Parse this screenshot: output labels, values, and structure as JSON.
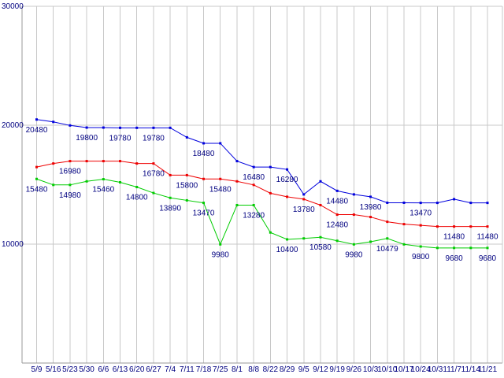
{
  "chart_data": {
    "type": "line",
    "title": "",
    "legend": "none",
    "grid": true,
    "x": [
      "5/9",
      "5/16",
      "5/23",
      "5/30",
      "6/6",
      "6/13",
      "6/20",
      "6/27",
      "7/4",
      "7/11",
      "7/18",
      "7/25",
      "8/1",
      "8/8",
      "8/22",
      "8/29",
      "9/5",
      "9/12",
      "9/19",
      "9/26",
      "10/3",
      "10/10",
      "10/17",
      "10/24",
      "10/31",
      "11/7",
      "11/14",
      "11/21"
    ],
    "y_axis": {
      "min": 0,
      "max": 30000,
      "ticks": [
        10000,
        20000,
        30000
      ],
      "tick_labels": [
        "10000",
        "20000",
        "30000"
      ]
    },
    "colors": {
      "grid": "#c8c8c8",
      "axis": "#999999",
      "text": "#000080",
      "background": "#ffffff"
    },
    "series": [
      {
        "name": "blue",
        "color": "#0000dd",
        "values": [
          20480,
          20280,
          19980,
          19800,
          19800,
          19780,
          19780,
          19780,
          19780,
          18980,
          18480,
          18480,
          16980,
          16480,
          16480,
          16280,
          14180,
          15280,
          14480,
          14180,
          13980,
          13480,
          13480,
          13470,
          13470,
          13780,
          13470,
          13470
        ],
        "point_labels": [
          {
            "i": 0,
            "text": "20480"
          },
          {
            "i": 3,
            "text": "19800"
          },
          {
            "i": 5,
            "text": "19780"
          },
          {
            "i": 7,
            "text": "19780"
          },
          {
            "i": 10,
            "text": "18480"
          },
          {
            "i": 13,
            "text": "16480"
          },
          {
            "i": 15,
            "text": "16280"
          },
          {
            "i": 18,
            "text": "14480"
          },
          {
            "i": 20,
            "text": "13980"
          },
          {
            "i": 23,
            "text": "13470"
          }
        ]
      },
      {
        "name": "red",
        "color": "#ee0000",
        "values": [
          16480,
          16780,
          16980,
          16980,
          16980,
          16980,
          16780,
          16780,
          15800,
          15800,
          15480,
          15480,
          15280,
          14980,
          14280,
          13980,
          13780,
          13280,
          12480,
          12480,
          12280,
          11880,
          11680,
          11580,
          11480,
          11480,
          11480,
          11480
        ],
        "point_labels": [
          {
            "i": 2,
            "text": "16980"
          },
          {
            "i": 7,
            "text": "16780"
          },
          {
            "i": 9,
            "text": "15800"
          },
          {
            "i": 11,
            "text": "15480"
          },
          {
            "i": 16,
            "text": "13780"
          },
          {
            "i": 18,
            "text": "12480"
          },
          {
            "i": 25,
            "text": "11480"
          },
          {
            "i": 27,
            "text": "11480"
          }
        ]
      },
      {
        "name": "green",
        "color": "#00cc00",
        "values": [
          15480,
          14980,
          14980,
          15280,
          15460,
          15200,
          14800,
          14300,
          13890,
          13680,
          13470,
          9980,
          13280,
          13280,
          10980,
          10400,
          10480,
          10580,
          10280,
          9980,
          10200,
          10479,
          9980,
          9800,
          9680,
          9680,
          9680,
          9680
        ],
        "point_labels": [
          {
            "i": 0,
            "text": "15480"
          },
          {
            "i": 2,
            "text": "14980"
          },
          {
            "i": 4,
            "text": "15460"
          },
          {
            "i": 6,
            "text": "14800"
          },
          {
            "i": 8,
            "text": "13890"
          },
          {
            "i": 10,
            "text": "13470"
          },
          {
            "i": 11,
            "text": "9980"
          },
          {
            "i": 13,
            "text": "13280"
          },
          {
            "i": 15,
            "text": "10400"
          },
          {
            "i": 17,
            "text": "10580"
          },
          {
            "i": 19,
            "text": "9980"
          },
          {
            "i": 21,
            "text": "10479"
          },
          {
            "i": 23,
            "text": "9800"
          },
          {
            "i": 25,
            "text": "9680"
          },
          {
            "i": 27,
            "text": "9680"
          }
        ]
      }
    ]
  }
}
